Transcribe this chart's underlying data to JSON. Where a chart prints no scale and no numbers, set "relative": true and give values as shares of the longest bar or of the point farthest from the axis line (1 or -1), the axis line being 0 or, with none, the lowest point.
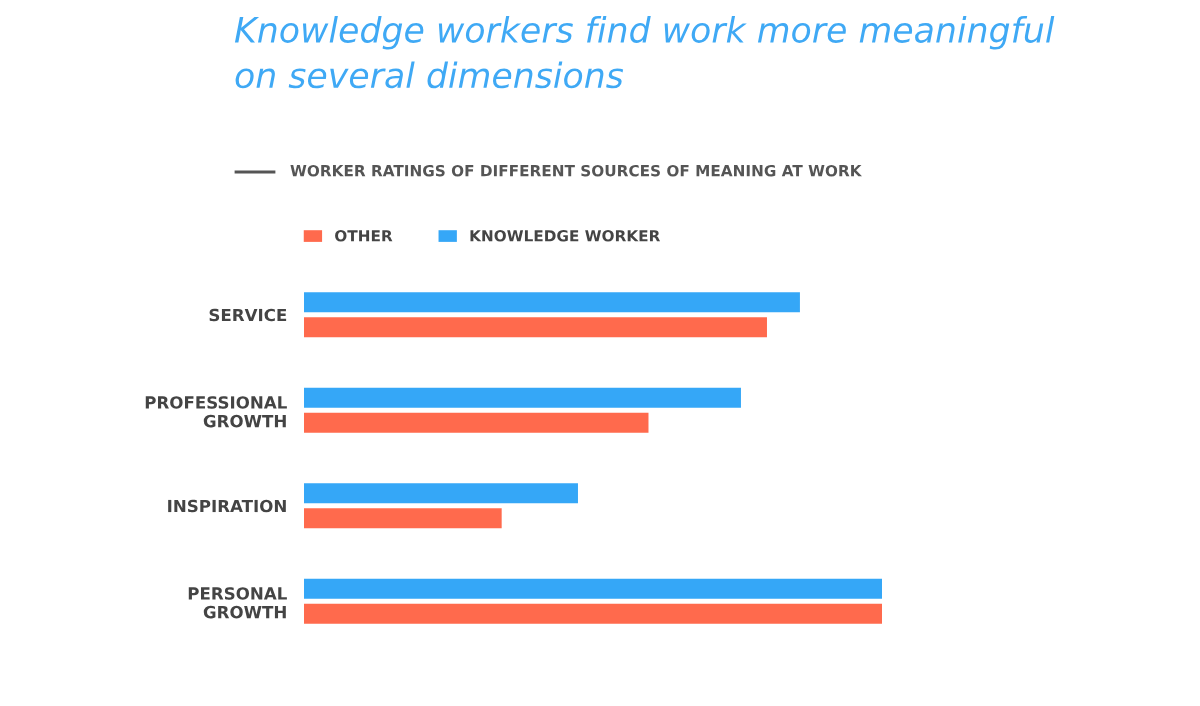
{
  "chart_data": {
    "type": "bar",
    "orientation": "horizontal",
    "relative": true,
    "title": "Knowledge workers find work more meaningful\non several dimensions",
    "subtitle": "WORKER RATINGS OF DIFFERENT SOURCES OF MEANING AT WORK",
    "categories": [
      "SERVICE",
      "PROFESSIONAL\nGROWTH",
      "INSPIRATION",
      "PERSONAL\nGROWTH"
    ],
    "series": [
      {
        "name": "KNOWLEDGE WORKER",
        "color": "#35a7f7",
        "values": [
          0.858,
          0.756,
          0.474,
          1.0
        ]
      },
      {
        "name": "OTHER",
        "color": "#ff6a4d",
        "values": [
          0.801,
          0.596,
          0.342,
          1.0
        ]
      }
    ],
    "legend": "top left",
    "grid": false
  }
}
